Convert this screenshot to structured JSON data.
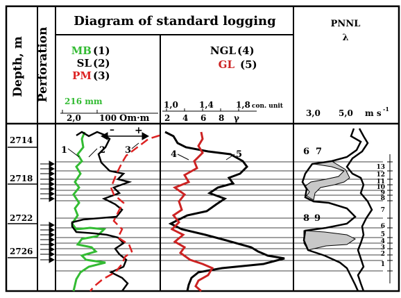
{
  "header": {
    "depth": "Depth, m",
    "perforation": "Perforation",
    "logging_title": "Diagram of standard logging",
    "pnnl_title": "PNNL",
    "pnnl_symbol": "λ"
  },
  "legend": {
    "mb": "MB",
    "mb_num": "(1)",
    "sl": "SL",
    "sl_num": "(2)",
    "pm": "PM",
    "pm_num": "(3)",
    "ngl": "NGL",
    "ngl_num": "(4)",
    "gl": "GL",
    "gl_num": "(5)"
  },
  "scales": {
    "resist_top": "216 mm",
    "resist_left": "2,0",
    "resist_right": "100",
    "resist_unit": "Om·m",
    "gamma_top": [
      "1,0",
      "1,4",
      "1,8"
    ],
    "gamma_top_unit": "con. unit",
    "gamma_bottom": [
      "2",
      "4",
      "6",
      "8"
    ],
    "gamma_bottom_unit": "γ",
    "pnnl_left": "3,0",
    "pnnl_right": "5,0",
    "pnnl_unit": "m s",
    "pnnl_unit_exp": "-1"
  },
  "depths": [
    "2714",
    "2718",
    "2722",
    "2726"
  ],
  "curve_labels": [
    "1",
    "2",
    "3",
    "4",
    "5",
    "6",
    "7",
    "8",
    "9"
  ],
  "sign_minus": "–",
  "sign_plus": "+",
  "layer_numbers": [
    "13",
    "12",
    "11",
    "10",
    "9",
    "8",
    "7",
    "6",
    "5",
    "4",
    "3",
    "2",
    "1"
  ],
  "colors": {
    "mb": "#33bb33",
    "pm": "#dd2222",
    "sl": "#000000",
    "ngl": "#000000",
    "gl": "#cc2222"
  }
}
